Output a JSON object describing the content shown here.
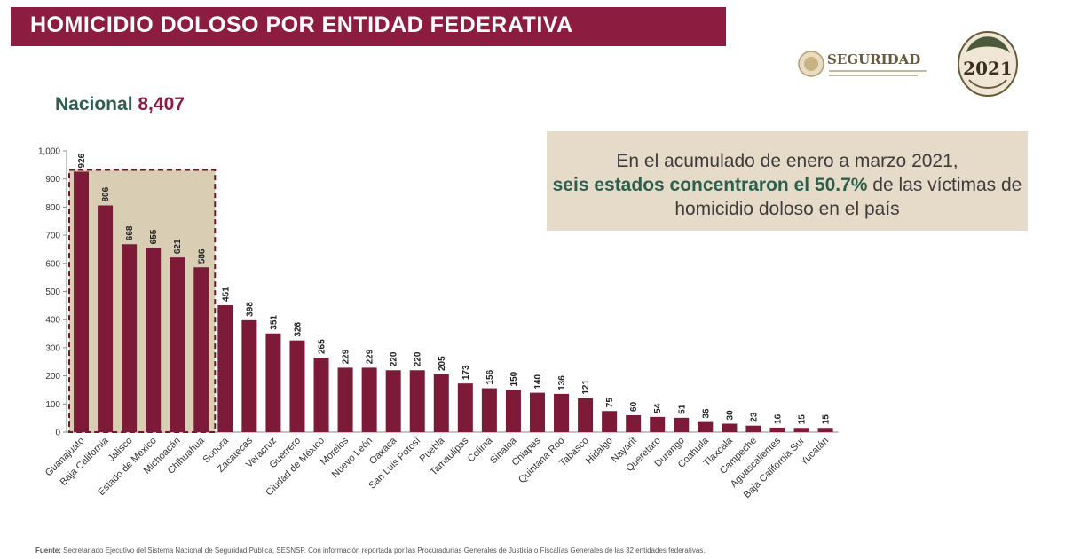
{
  "title": "HOMICIDIO DOLOSO POR ENTIDAD FEDERATIVA",
  "logo": {
    "name": "SEGURIDAD",
    "seal_text": "2021"
  },
  "nacional": {
    "label": "Nacional",
    "value": "8,407"
  },
  "callout": {
    "line1": "En el acumulado de enero a marzo 2021,",
    "highlight": "seis estados concentraron el 50.7%",
    "rest": " de las víctimas de homicidio doloso en el país"
  },
  "footer": {
    "label": "Fuente:",
    "text": "Secretariado Ejecutivo del Sistema Nacional de Seguridad Pública, SESNSP. Con información reportada por las Procuradurías Generales de Justicia o Fiscalías Generales de las 32 entidades federativas."
  },
  "colors": {
    "brand": "#8c1d40",
    "bar": "#7d1a38",
    "highlight_box": "#d9cdb4",
    "green": "#2c5f4e"
  },
  "chart_data": {
    "type": "bar",
    "title": "HOMICIDIO DOLOSO POR ENTIDAD FEDERATIVA",
    "xlabel": "",
    "ylabel": "",
    "ylim": [
      0,
      1000
    ],
    "yticks": [
      0,
      100,
      200,
      300,
      400,
      500,
      600,
      700,
      800,
      900,
      1000
    ],
    "ytick_labels": [
      "0",
      "100",
      "200",
      "300",
      "400",
      "500",
      "600",
      "700",
      "800",
      "900",
      "1,000"
    ],
    "highlighted_count": 6,
    "categories": [
      "Guanajuato",
      "Baja California",
      "Jalisco",
      "Estado de México",
      "Michoacán",
      "Chihuahua",
      "Sonora",
      "Zacatecas",
      "Veracruz",
      "Guerrero",
      "Ciudad de México",
      "Morelos",
      "Nuevo León",
      "Oaxaca",
      "San Luis Potosí",
      "Puebla",
      "Tamaulipas",
      "Colima",
      "Sinaloa",
      "Chiapas",
      "Quintana Roo",
      "Tabasco",
      "Hidalgo",
      "Nayarit",
      "Querétaro",
      "Durango",
      "Coahuila",
      "Tlaxcala",
      "Campeche",
      "Aguascalientes",
      "Baja California Sur",
      "Yucatán"
    ],
    "values": [
      926,
      806,
      668,
      655,
      621,
      586,
      451,
      398,
      351,
      326,
      265,
      229,
      229,
      220,
      220,
      205,
      173,
      156,
      150,
      140,
      136,
      121,
      75,
      60,
      54,
      51,
      36,
      30,
      23,
      16,
      15,
      15
    ]
  }
}
